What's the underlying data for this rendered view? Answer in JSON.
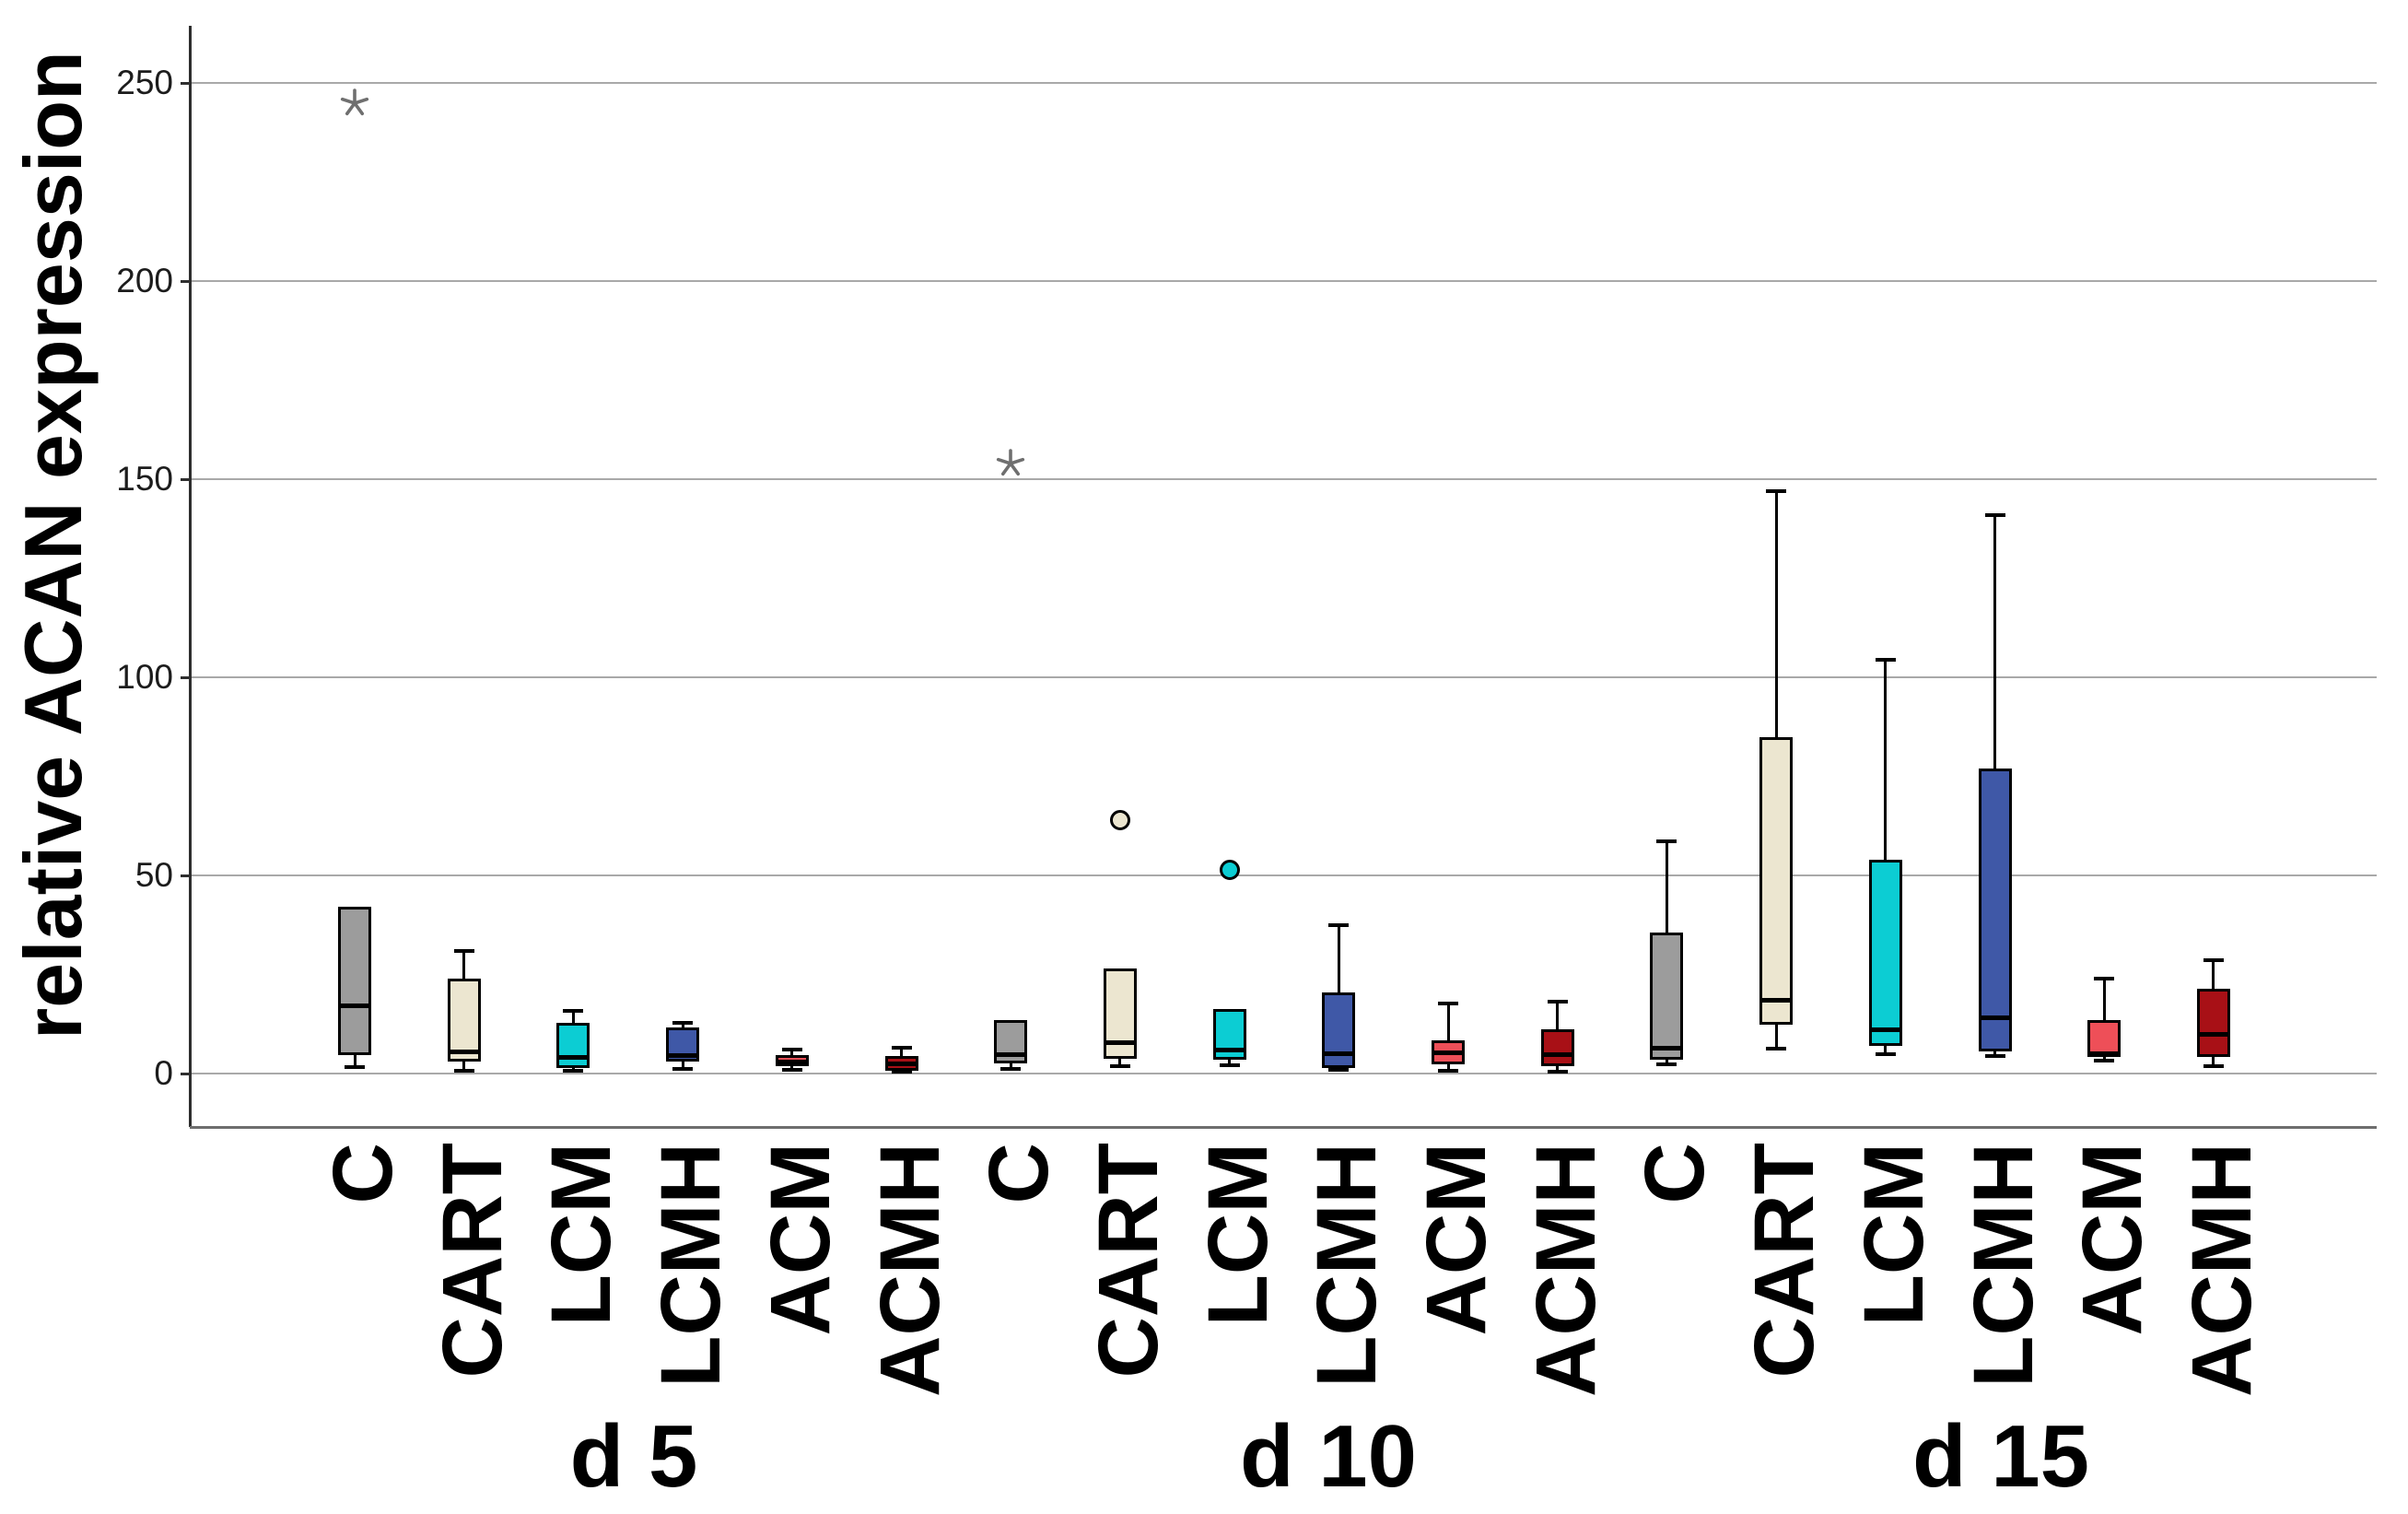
{
  "figure": {
    "y_axis": {
      "title": "relative ACAN expression",
      "tick_labels": [
        "0",
        "50",
        "100",
        "150",
        "200",
        "250"
      ]
    },
    "x_axis": {
      "category_labels": [
        "C",
        "CART",
        "LCM",
        "LCMH",
        "ACM",
        "ACMH"
      ],
      "group_labels": [
        "d 5",
        "d 10",
        "d 15"
      ]
    }
  },
  "chart_data": {
    "type": "boxplot",
    "title": "",
    "xlabel": "",
    "ylabel": "relative ACAN expression",
    "ylim": [
      -13.5,
      264
    ],
    "yticks": [
      0,
      50,
      100,
      150,
      200,
      250
    ],
    "grid": true,
    "legend": "none",
    "categories": [
      "C",
      "CART",
      "LCM",
      "LCMH",
      "ACM",
      "ACMH"
    ],
    "group_labels": [
      "d 5",
      "d 10",
      "d 15"
    ],
    "category_colors": {
      "C": "#9c9c9c",
      "CART": "#ece6d0",
      "LCM": "#0ccdd3",
      "LCMH": "#3f58a7",
      "ACM": "#ee4f58",
      "ACMH": "#a81016"
    },
    "outlier_legend": {
      "star": "extreme outlier",
      "circle": "mild outlier"
    },
    "groups": [
      {
        "label": "d 5",
        "boxes": [
          {
            "category": "C",
            "color": "#9c9c9c",
            "whisker_low": 1.6,
            "q1": 4.7,
            "median": 17,
            "q3": 42,
            "whisker_high": 42,
            "outliers": [
              {
                "shape": "star",
                "value": 245
              }
            ]
          },
          {
            "category": "CART",
            "color": "#ece6d0",
            "whisker_low": 0.7,
            "q1": 3,
            "median": 5.5,
            "q3": 24,
            "whisker_high": 31,
            "outliers": []
          },
          {
            "category": "LCM",
            "color": "#0ccdd3",
            "whisker_low": 0.8,
            "q1": 1.5,
            "median": 4,
            "q3": 12.8,
            "whisker_high": 15.8,
            "outliers": []
          },
          {
            "category": "LCMH",
            "color": "#3f58a7",
            "whisker_low": 1.2,
            "q1": 3.1,
            "median": 4.5,
            "q3": 11.6,
            "whisker_high": 12.8,
            "outliers": []
          },
          {
            "category": "ACM",
            "color": "#ee4f58",
            "whisker_low": 0.9,
            "q1": 1.8,
            "median": 3,
            "q3": 4.7,
            "whisker_high": 6,
            "outliers": []
          },
          {
            "category": "ACMH",
            "color": "#a81016",
            "whisker_low": 0.4,
            "q1": 0.8,
            "median": 2.5,
            "q3": 4.4,
            "whisker_high": 6.6,
            "outliers": []
          }
        ]
      },
      {
        "label": "d 10",
        "boxes": [
          {
            "category": "C",
            "color": "#9c9c9c",
            "whisker_low": 1.2,
            "q1": 2.6,
            "median": 4.7,
            "q3": 13.5,
            "whisker_high": 13.5,
            "outliers": [
              {
                "shape": "star",
                "value": 154
              }
            ]
          },
          {
            "category": "CART",
            "color": "#ece6d0",
            "whisker_low": 1.9,
            "q1": 3.7,
            "median": 7.7,
            "q3": 26.5,
            "whisker_high": 26.5,
            "outliers": [
              {
                "shape": "circle",
                "value": 64
              }
            ]
          },
          {
            "category": "LCM",
            "color": "#0ccdd3",
            "whisker_low": 2.2,
            "q1": 3.4,
            "median": 6,
            "q3": 16.3,
            "whisker_high": 16.3,
            "outliers": [
              {
                "shape": "circle",
                "value": 51.5
              }
            ]
          },
          {
            "category": "LCMH",
            "color": "#3f58a7",
            "whisker_low": 0.9,
            "q1": 1.4,
            "median": 5,
            "q3": 20.5,
            "whisker_high": 37.5,
            "outliers": []
          },
          {
            "category": "ACM",
            "color": "#ee4f58",
            "whisker_low": 0.7,
            "q1": 2.3,
            "median": 5.3,
            "q3": 8.4,
            "whisker_high": 17.7,
            "outliers": []
          },
          {
            "category": "ACMH",
            "color": "#a81016",
            "whisker_low": 0.5,
            "q1": 1.9,
            "median": 4.7,
            "q3": 11.2,
            "whisker_high": 18.1,
            "outliers": []
          }
        ]
      },
      {
        "label": "d 15",
        "boxes": [
          {
            "category": "C",
            "color": "#9c9c9c",
            "whisker_low": 2.3,
            "q1": 3.5,
            "median": 6.3,
            "q3": 35.5,
            "whisker_high": 58.5,
            "outliers": []
          },
          {
            "category": "CART",
            "color": "#ece6d0",
            "whisker_low": 6.3,
            "q1": 12.3,
            "median": 18.5,
            "q3": 85,
            "whisker_high": 147,
            "outliers": []
          },
          {
            "category": "LCM",
            "color": "#0ccdd3",
            "whisker_low": 5,
            "q1": 7,
            "median": 11,
            "q3": 54,
            "whisker_high": 104.5,
            "outliers": []
          },
          {
            "category": "LCMH",
            "color": "#3f58a7",
            "whisker_low": 4.5,
            "q1": 5.5,
            "median": 14,
            "q3": 77,
            "whisker_high": 141,
            "outliers": []
          },
          {
            "category": "ACM",
            "color": "#ee4f58",
            "whisker_low": 3.3,
            "q1": 4.2,
            "median": 5.1,
            "q3": 13.5,
            "whisker_high": 24,
            "outliers": []
          },
          {
            "category": "ACMH",
            "color": "#a81016",
            "whisker_low": 1.9,
            "q1": 4.2,
            "median": 9.8,
            "q3": 21.4,
            "whisker_high": 28.5,
            "outliers": []
          }
        ]
      }
    ],
    "style": {
      "background": "#ffffff",
      "grid_color": "#a9a9a9",
      "axis_color": "#2e2e2e",
      "frame_color": "#6e6e6e",
      "box_border_color": "#000000",
      "median_color": "#000000",
      "whisker_color": "#000000",
      "outlier_star_color": "#6f6f6f",
      "tick_label_color": "#1c1c1c",
      "label_color": "#000000"
    }
  }
}
